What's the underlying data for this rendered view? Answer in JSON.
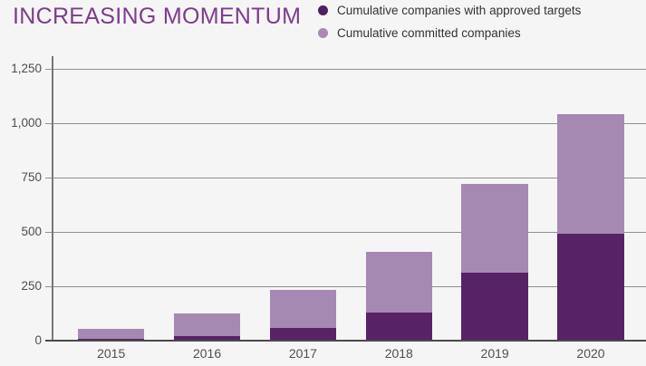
{
  "header": {
    "title": "INCREASING MOMENTUM",
    "title_color": "#7c3c8d"
  },
  "legend": {
    "position": "top-right",
    "items": [
      {
        "label": "Cumulative companies with approved targets",
        "color": "#4e2060"
      },
      {
        "label": "Cumulative committed companies",
        "color": "#a98ab5"
      }
    ]
  },
  "chart_data": {
    "type": "bar",
    "stacked": true,
    "title": "INCREASING MOMENTUM",
    "categories": [
      "2015",
      "2016",
      "2017",
      "2018",
      "2019",
      "2020"
    ],
    "series": [
      {
        "name": "Cumulative companies with approved targets",
        "color": "#572366",
        "values": [
          10,
          20,
          57,
          130,
          312,
          490
        ]
      },
      {
        "name": "Cumulative committed companies",
        "color": "#a689b2",
        "values": [
          55,
          125,
          235,
          410,
          720,
          1040
        ],
        "role": "total bar height (committed cumulative); light segment drawn from approved value to this total"
      }
    ],
    "xlabel": "",
    "ylabel": "",
    "ylim": [
      0,
      1250
    ],
    "yticks": [
      0,
      250,
      500,
      750,
      1000,
      1250
    ],
    "ytick_labels": [
      "0",
      "250",
      "500",
      "750",
      "1,000",
      "1,250"
    ],
    "grid": true,
    "axis_color": "#777777",
    "gridline_color": "#8f8f8f",
    "baseline_color": "#4a4a4a",
    "tick_text_color": "#4d4d4d",
    "background_color": "#f5f5f6",
    "legend_position": "top"
  }
}
